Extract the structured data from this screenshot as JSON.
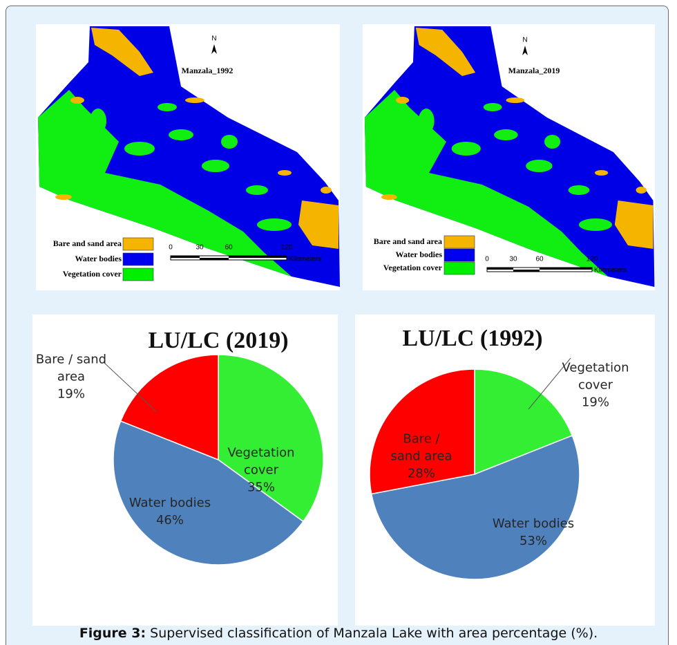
{
  "maps": [
    {
      "title": "Manzala_1992",
      "north": "N",
      "legend": [
        "Bare and sand area",
        "Water bodies",
        "Vegetation cover"
      ],
      "scale": [
        0,
        30,
        60,
        120
      ],
      "scale_unit": "Kilometers"
    },
    {
      "title": "Manzala_2019",
      "north": "N",
      "legend": [
        "Bare and sand area",
        "Water bodies",
        "Vegetation cover"
      ],
      "scale": [
        0,
        30,
        60,
        120
      ],
      "scale_unit": "Kilometers"
    }
  ],
  "chart_data": [
    {
      "type": "pie",
      "title": "LU/LC (2019)",
      "categories": [
        "Vegetation cover",
        "Water bodies",
        "Bare / sand area"
      ],
      "values": [
        35,
        46,
        19
      ],
      "value_labels": [
        "35%",
        "46%",
        "19%"
      ],
      "colors": [
        "#33ee33",
        "#4f81bd",
        "#ff0000"
      ]
    },
    {
      "type": "pie",
      "title": "LU/LC (1992)",
      "categories": [
        "Vegetation cover",
        "Water bodies",
        "Bare / sand area"
      ],
      "values": [
        19,
        53,
        28
      ],
      "value_labels": [
        "19%",
        "53%",
        "28%"
      ],
      "colors": [
        "#33ee33",
        "#4f81bd",
        "#ff0000"
      ]
    }
  ],
  "caption": {
    "label": "Figure 3:",
    "text": "Supervised classification of Manzala Lake with area percentage (%)."
  }
}
